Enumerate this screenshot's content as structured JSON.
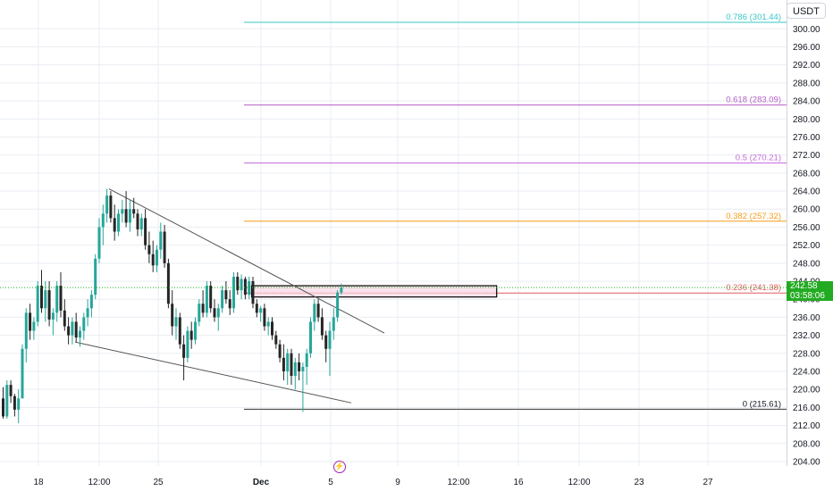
{
  "currency": "USDT",
  "price_tag": {
    "price": "242.58",
    "countdown": "03:58:06"
  },
  "event_icon": "lightning-icon",
  "colors": {
    "up": "#26a69a",
    "down": "#262626",
    "grid": "#e9edf3",
    "last_price": "#22ab22",
    "fib_0786": "#3bc6c6",
    "fib_0618": "#b45fc4",
    "fib_05": "#c46adb",
    "fib_0382": "#f59c1a",
    "fib_0236": "#e55c5c",
    "fib_0": "#333333"
  },
  "chart_data": {
    "type": "candlestick",
    "y_axis": {
      "ticks": [
        "300.00",
        "296.00",
        "292.00",
        "288.00",
        "284.00",
        "280.00",
        "276.00",
        "272.00",
        "268.00",
        "264.00",
        "260.00",
        "256.00",
        "252.00",
        "248.00",
        "244.00",
        "240.00",
        "236.00",
        "232.00",
        "228.00",
        "224.00",
        "220.00",
        "216.00",
        "212.00",
        "208.00",
        "204.00"
      ],
      "range": [
        203,
        306
      ]
    },
    "x_axis": {
      "ticks": [
        {
          "label": "18",
          "bold": false
        },
        {
          "label": "12:00",
          "bold": false
        },
        {
          "label": "25",
          "bold": false
        },
        {
          "label": "Dec",
          "bold": true
        },
        {
          "label": "5",
          "bold": false
        },
        {
          "label": "9",
          "bold": false
        },
        {
          "label": "12:00",
          "bold": false
        },
        {
          "label": "16",
          "bold": false
        },
        {
          "label": "12:00",
          "bold": false
        },
        {
          "label": "23",
          "bold": false
        },
        {
          "label": "27",
          "bold": false
        }
      ]
    },
    "last_price": 242.58,
    "fib_levels": [
      {
        "label": "0.786 (301.44)",
        "value": 301.44,
        "color_key": "fib_0786"
      },
      {
        "label": "0.618 (283.09)",
        "value": 283.09,
        "color_key": "fib_0618"
      },
      {
        "label": "0.5 (270.21)",
        "value": 270.21,
        "color_key": "fib_05"
      },
      {
        "label": "0.382 (257.32)",
        "value": 257.32,
        "color_key": "fib_0382"
      },
      {
        "label": "0.236 (241.38)",
        "value": 241.38,
        "color_key": "fib_0236"
      },
      {
        "label": "0 (215.61)",
        "value": 215.61,
        "color_key": "fib_0"
      }
    ],
    "trendlines": [
      {
        "name": "upper-trendline",
        "from": [
          0,
          264.5
        ],
        "to": [
          100,
          232.5
        ]
      },
      {
        "name": "lower-trendline",
        "from": [
          20,
          230.5
        ],
        "to": [
          91,
          217.0
        ]
      }
    ],
    "box": {
      "x_from": 65,
      "x_to": 119,
      "y_low": 240.5,
      "y_high": 243.0
    },
    "candles": [
      {
        "o": 218,
        "h": 220.5,
        "l": 213.5,
        "c": 214
      },
      {
        "o": 214,
        "h": 222,
        "l": 213.5,
        "c": 221
      },
      {
        "o": 221,
        "h": 222,
        "l": 217,
        "c": 218.5
      },
      {
        "o": 218.5,
        "h": 219,
        "l": 214,
        "c": 215.5
      },
      {
        "o": 215.5,
        "h": 220,
        "l": 212.5,
        "c": 218
      },
      {
        "o": 218,
        "h": 230,
        "l": 218,
        "c": 229
      },
      {
        "o": 229,
        "h": 238,
        "l": 226,
        "c": 237
      },
      {
        "o": 237,
        "h": 239,
        "l": 231,
        "c": 233
      },
      {
        "o": 233,
        "h": 236,
        "l": 231,
        "c": 235
      },
      {
        "o": 235,
        "h": 244,
        "l": 234,
        "c": 243
      },
      {
        "o": 243,
        "h": 246.5,
        "l": 237,
        "c": 238
      },
      {
        "o": 238,
        "h": 244,
        "l": 235,
        "c": 242
      },
      {
        "o": 242,
        "h": 244,
        "l": 234,
        "c": 235.5
      },
      {
        "o": 235.5,
        "h": 238,
        "l": 232,
        "c": 237
      },
      {
        "o": 237,
        "h": 244,
        "l": 235,
        "c": 243
      },
      {
        "o": 243,
        "h": 246,
        "l": 236,
        "c": 237.5
      },
      {
        "o": 237.5,
        "h": 240,
        "l": 233,
        "c": 234
      },
      {
        "o": 234,
        "h": 236,
        "l": 230,
        "c": 232
      },
      {
        "o": 232,
        "h": 236,
        "l": 230,
        "c": 235
      },
      {
        "o": 235,
        "h": 237,
        "l": 230.5,
        "c": 231.5
      },
      {
        "o": 231.5,
        "h": 234,
        "l": 229.5,
        "c": 233
      },
      {
        "o": 233,
        "h": 237,
        "l": 231,
        "c": 236
      },
      {
        "o": 236,
        "h": 240,
        "l": 234,
        "c": 238
      },
      {
        "o": 238,
        "h": 242,
        "l": 236,
        "c": 241
      },
      {
        "o": 241,
        "h": 250,
        "l": 240,
        "c": 249
      },
      {
        "o": 249,
        "h": 258,
        "l": 248,
        "c": 256
      },
      {
        "o": 256,
        "h": 261,
        "l": 252,
        "c": 259
      },
      {
        "o": 259,
        "h": 264.5,
        "l": 257,
        "c": 263
      },
      {
        "o": 263,
        "h": 264,
        "l": 257,
        "c": 258
      },
      {
        "o": 258,
        "h": 261,
        "l": 253,
        "c": 255
      },
      {
        "o": 255,
        "h": 260,
        "l": 254,
        "c": 259
      },
      {
        "o": 259,
        "h": 262,
        "l": 257,
        "c": 260
      },
      {
        "o": 260,
        "h": 264,
        "l": 256,
        "c": 257
      },
      {
        "o": 257,
        "h": 262,
        "l": 255,
        "c": 260
      },
      {
        "o": 260,
        "h": 262.5,
        "l": 258,
        "c": 259
      },
      {
        "o": 259,
        "h": 260,
        "l": 254,
        "c": 255.5
      },
      {
        "o": 255.5,
        "h": 259,
        "l": 254,
        "c": 258
      },
      {
        "o": 258,
        "h": 260,
        "l": 251,
        "c": 252
      },
      {
        "o": 252,
        "h": 255,
        "l": 248,
        "c": 250
      },
      {
        "o": 250,
        "h": 253,
        "l": 246,
        "c": 247.5
      },
      {
        "o": 247.5,
        "h": 252,
        "l": 246,
        "c": 251
      },
      {
        "o": 251,
        "h": 257,
        "l": 249,
        "c": 255
      },
      {
        "o": 255,
        "h": 256.5,
        "l": 247,
        "c": 248
      },
      {
        "o": 248,
        "h": 249,
        "l": 238,
        "c": 239
      },
      {
        "o": 239,
        "h": 242,
        "l": 232,
        "c": 234
      },
      {
        "o": 234,
        "h": 238,
        "l": 231,
        "c": 236
      },
      {
        "o": 236,
        "h": 237,
        "l": 229,
        "c": 230
      },
      {
        "o": 230,
        "h": 232,
        "l": 222,
        "c": 227
      },
      {
        "o": 227,
        "h": 234,
        "l": 226,
        "c": 233
      },
      {
        "o": 233,
        "h": 235,
        "l": 229,
        "c": 231
      },
      {
        "o": 231,
        "h": 236,
        "l": 230,
        "c": 235
      },
      {
        "o": 235,
        "h": 240,
        "l": 234,
        "c": 239
      },
      {
        "o": 239,
        "h": 242,
        "l": 236,
        "c": 237
      },
      {
        "o": 237,
        "h": 244,
        "l": 236,
        "c": 243
      },
      {
        "o": 243,
        "h": 244,
        "l": 237,
        "c": 238
      },
      {
        "o": 238,
        "h": 240,
        "l": 235,
        "c": 236
      },
      {
        "o": 236,
        "h": 239,
        "l": 233,
        "c": 238
      },
      {
        "o": 238,
        "h": 243,
        "l": 237,
        "c": 242
      },
      {
        "o": 242,
        "h": 244,
        "l": 239,
        "c": 240
      },
      {
        "o": 240,
        "h": 242,
        "l": 236.5,
        "c": 238
      },
      {
        "o": 238,
        "h": 246,
        "l": 237,
        "c": 245
      },
      {
        "o": 245,
        "h": 246,
        "l": 241,
        "c": 242
      },
      {
        "o": 242,
        "h": 245.5,
        "l": 240,
        "c": 244.5
      },
      {
        "o": 244.5,
        "h": 245,
        "l": 240,
        "c": 241
      },
      {
        "o": 241,
        "h": 245,
        "l": 240,
        "c": 244
      },
      {
        "o": 244,
        "h": 245,
        "l": 238,
        "c": 239
      },
      {
        "o": 239,
        "h": 240,
        "l": 236,
        "c": 237
      },
      {
        "o": 237,
        "h": 238.5,
        "l": 235,
        "c": 238
      },
      {
        "o": 238,
        "h": 239,
        "l": 233,
        "c": 234
      },
      {
        "o": 234,
        "h": 236,
        "l": 232,
        "c": 235
      },
      {
        "o": 235,
        "h": 236,
        "l": 231,
        "c": 232
      },
      {
        "o": 232,
        "h": 233,
        "l": 229,
        "c": 230
      },
      {
        "o": 230,
        "h": 231,
        "l": 226,
        "c": 227
      },
      {
        "o": 227,
        "h": 230,
        "l": 222,
        "c": 224
      },
      {
        "o": 224,
        "h": 229,
        "l": 221,
        "c": 228
      },
      {
        "o": 228,
        "h": 229,
        "l": 221,
        "c": 223
      },
      {
        "o": 223,
        "h": 227,
        "l": 220,
        "c": 226
      },
      {
        "o": 226,
        "h": 228,
        "l": 222,
        "c": 224
      },
      {
        "o": 224,
        "h": 226,
        "l": 215,
        "c": 225
      },
      {
        "o": 225,
        "h": 229,
        "l": 221,
        "c": 228
      },
      {
        "o": 228,
        "h": 236,
        "l": 227,
        "c": 235
      },
      {
        "o": 235,
        "h": 240,
        "l": 233,
        "c": 239
      },
      {
        "o": 239,
        "h": 240,
        "l": 235,
        "c": 236
      },
      {
        "o": 236,
        "h": 238,
        "l": 231,
        "c": 232
      },
      {
        "o": 232,
        "h": 233,
        "l": 226,
        "c": 229
      },
      {
        "o": 229,
        "h": 235,
        "l": 223,
        "c": 233
      },
      {
        "o": 233,
        "h": 238,
        "l": 231,
        "c": 236
      },
      {
        "o": 236,
        "h": 242,
        "l": 235,
        "c": 241.5
      },
      {
        "o": 241.5,
        "h": 243.5,
        "l": 241,
        "c": 242.58
      }
    ]
  }
}
